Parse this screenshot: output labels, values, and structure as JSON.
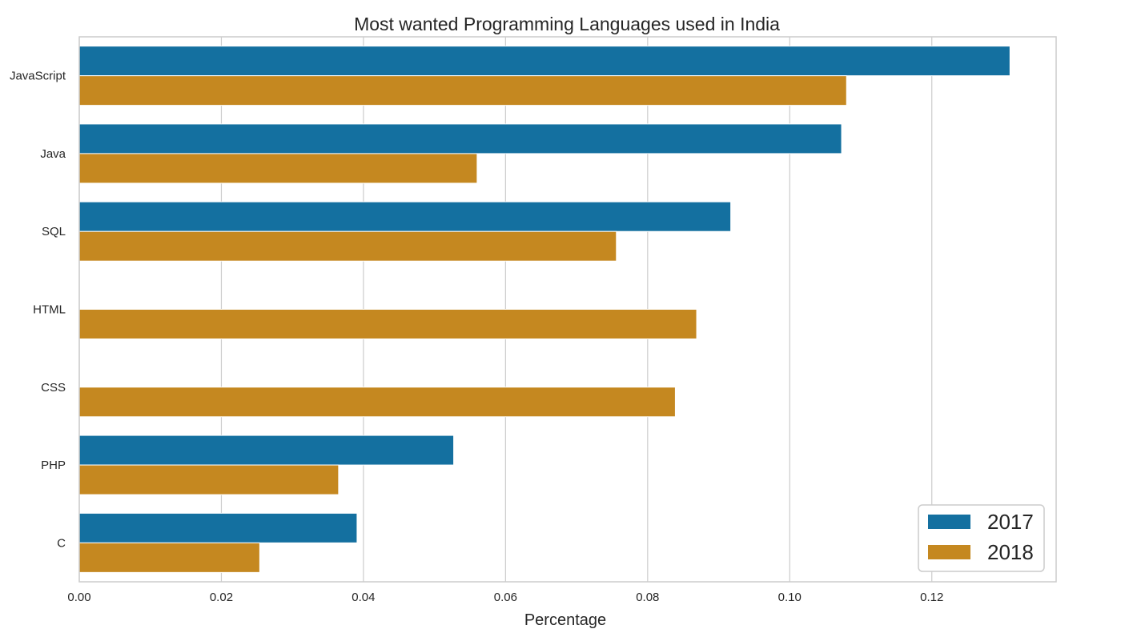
{
  "chart_data": {
    "type": "bar",
    "orientation": "horizontal",
    "title": "Most wanted Programming Languages used in India",
    "xlabel": "Percentage",
    "ylabel": "",
    "categories": [
      "JavaScript",
      "Java",
      "SQL",
      "HTML",
      "CSS",
      "PHP",
      "C"
    ],
    "series": [
      {
        "name": "2017",
        "color": "#1470a0",
        "values": [
          0.131,
          0.1073,
          0.0917,
          null,
          null,
          0.0527,
          0.0391
        ]
      },
      {
        "name": "2018",
        "color": "#c58820",
        "values": [
          0.108,
          0.056,
          0.0756,
          0.0869,
          0.0839,
          0.0365,
          0.0254
        ]
      }
    ],
    "xlim": [
      0,
      0.1375
    ],
    "xticks": [
      "0.00",
      "0.02",
      "0.04",
      "0.06",
      "0.08",
      "0.10",
      "0.12"
    ],
    "grid": "vertical",
    "legend_position": "bottom-right"
  }
}
